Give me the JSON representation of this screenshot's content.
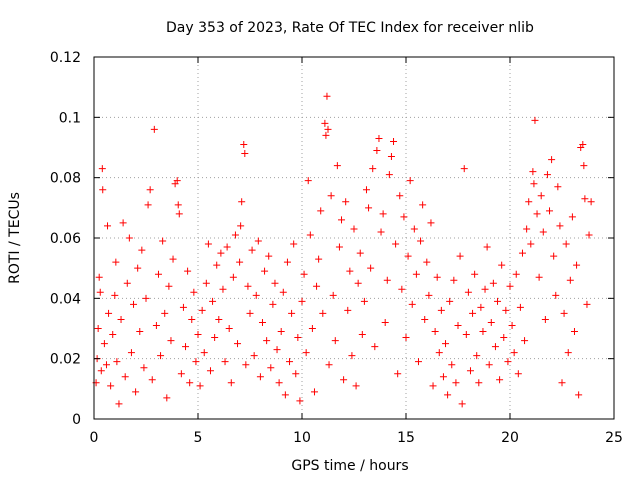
{
  "chart_data": {
    "type": "scatter",
    "title": "Day 353 of 2023, Rate Of TEC Index for receiver nlib",
    "xlabel": "GPS time / hours",
    "ylabel": "ROTI / TECUs",
    "xlim": [
      0,
      25
    ],
    "ylim": [
      0,
      0.12
    ],
    "x_ticks": [
      0,
      5,
      10,
      15,
      20,
      25
    ],
    "x_tick_labels": [
      "0",
      "5",
      "10",
      "15",
      "20",
      "25"
    ],
    "y_ticks": [
      0,
      0.02,
      0.04,
      0.06,
      0.08,
      0.1,
      0.12
    ],
    "y_tick_labels": [
      "0",
      "0.02",
      "0.04",
      "0.06",
      "0.08",
      "0.1",
      "0.12"
    ],
    "grid": true,
    "marker": "plus",
    "color": "#ff0000",
    "series": [
      {
        "points": [
          [
            0.1,
            0.012
          ],
          [
            0.15,
            0.02
          ],
          [
            0.2,
            0.03
          ],
          [
            0.25,
            0.047
          ],
          [
            0.3,
            0.042
          ],
          [
            0.35,
            0.016
          ],
          [
            0.4,
            0.083
          ],
          [
            0.42,
            0.076
          ],
          [
            0.5,
            0.025
          ],
          [
            0.6,
            0.018
          ],
          [
            0.65,
            0.064
          ],
          [
            0.7,
            0.035
          ],
          [
            0.8,
            0.011
          ],
          [
            0.9,
            0.028
          ],
          [
            1.0,
            0.041
          ],
          [
            1.05,
            0.052
          ],
          [
            1.1,
            0.019
          ],
          [
            1.2,
            0.005
          ],
          [
            1.3,
            0.033
          ],
          [
            1.4,
            0.065
          ],
          [
            1.5,
            0.014
          ],
          [
            1.6,
            0.045
          ],
          [
            1.7,
            0.06
          ],
          [
            1.8,
            0.022
          ],
          [
            1.9,
            0.038
          ],
          [
            2.0,
            0.009
          ],
          [
            2.1,
            0.05
          ],
          [
            2.2,
            0.029
          ],
          [
            2.3,
            0.056
          ],
          [
            2.4,
            0.017
          ],
          [
            2.5,
            0.04
          ],
          [
            2.6,
            0.071
          ],
          [
            2.7,
            0.076
          ],
          [
            2.8,
            0.013
          ],
          [
            2.9,
            0.096
          ],
          [
            3.0,
            0.031
          ],
          [
            3.1,
            0.048
          ],
          [
            3.2,
            0.021
          ],
          [
            3.3,
            0.059
          ],
          [
            3.4,
            0.035
          ],
          [
            3.5,
            0.007
          ],
          [
            3.6,
            0.044
          ],
          [
            3.7,
            0.026
          ],
          [
            3.8,
            0.053
          ],
          [
            3.9,
            0.078
          ],
          [
            4.0,
            0.079
          ],
          [
            4.05,
            0.071
          ],
          [
            4.1,
            0.068
          ],
          [
            4.2,
            0.015
          ],
          [
            4.3,
            0.037
          ],
          [
            4.4,
            0.024
          ],
          [
            4.5,
            0.049
          ],
          [
            4.6,
            0.012
          ],
          [
            4.7,
            0.033
          ],
          [
            4.8,
            0.042
          ],
          [
            4.9,
            0.019
          ],
          [
            5.0,
            0.028
          ],
          [
            5.1,
            0.011
          ],
          [
            5.2,
            0.036
          ],
          [
            5.3,
            0.022
          ],
          [
            5.4,
            0.045
          ],
          [
            5.5,
            0.058
          ],
          [
            5.6,
            0.016
          ],
          [
            5.7,
            0.039
          ],
          [
            5.8,
            0.027
          ],
          [
            5.9,
            0.051
          ],
          [
            6.0,
            0.033
          ],
          [
            6.1,
            0.055
          ],
          [
            6.2,
            0.043
          ],
          [
            6.3,
            0.019
          ],
          [
            6.4,
            0.057
          ],
          [
            6.5,
            0.03
          ],
          [
            6.6,
            0.012
          ],
          [
            6.7,
            0.047
          ],
          [
            6.8,
            0.061
          ],
          [
            6.9,
            0.025
          ],
          [
            7.0,
            0.052
          ],
          [
            7.05,
            0.064
          ],
          [
            7.1,
            0.072
          ],
          [
            7.2,
            0.091
          ],
          [
            7.25,
            0.088
          ],
          [
            7.3,
            0.018
          ],
          [
            7.4,
            0.044
          ],
          [
            7.5,
            0.035
          ],
          [
            7.6,
            0.056
          ],
          [
            7.7,
            0.021
          ],
          [
            7.8,
            0.041
          ],
          [
            7.9,
            0.059
          ],
          [
            8.0,
            0.014
          ],
          [
            8.1,
            0.032
          ],
          [
            8.2,
            0.049
          ],
          [
            8.3,
            0.026
          ],
          [
            8.4,
            0.054
          ],
          [
            8.5,
            0.017
          ],
          [
            8.6,
            0.038
          ],
          [
            8.7,
            0.045
          ],
          [
            8.8,
            0.023
          ],
          [
            8.9,
            0.012
          ],
          [
            9.0,
            0.029
          ],
          [
            9.1,
            0.042
          ],
          [
            9.2,
            0.008
          ],
          [
            9.3,
            0.052
          ],
          [
            9.4,
            0.019
          ],
          [
            9.5,
            0.035
          ],
          [
            9.6,
            0.058
          ],
          [
            9.7,
            0.015
          ],
          [
            9.8,
            0.027
          ],
          [
            9.9,
            0.006
          ],
          [
            10.0,
            0.039
          ],
          [
            10.1,
            0.048
          ],
          [
            10.2,
            0.022
          ],
          [
            10.3,
            0.079
          ],
          [
            10.4,
            0.061
          ],
          [
            10.5,
            0.03
          ],
          [
            10.6,
            0.009
          ],
          [
            10.7,
            0.044
          ],
          [
            10.8,
            0.053
          ],
          [
            10.9,
            0.069
          ],
          [
            11.0,
            0.035
          ],
          [
            11.1,
            0.098
          ],
          [
            11.15,
            0.094
          ],
          [
            11.2,
            0.107
          ],
          [
            11.25,
            0.096
          ],
          [
            11.3,
            0.018
          ],
          [
            11.4,
            0.074
          ],
          [
            11.5,
            0.041
          ],
          [
            11.6,
            0.026
          ],
          [
            11.7,
            0.084
          ],
          [
            11.8,
            0.057
          ],
          [
            11.9,
            0.066
          ],
          [
            12.0,
            0.013
          ],
          [
            12.1,
            0.072
          ],
          [
            12.2,
            0.036
          ],
          [
            12.3,
            0.049
          ],
          [
            12.4,
            0.021
          ],
          [
            12.5,
            0.063
          ],
          [
            12.6,
            0.011
          ],
          [
            12.7,
            0.045
          ],
          [
            12.8,
            0.055
          ],
          [
            12.9,
            0.028
          ],
          [
            13.0,
            0.039
          ],
          [
            13.1,
            0.076
          ],
          [
            13.2,
            0.07
          ],
          [
            13.3,
            0.05
          ],
          [
            13.4,
            0.083
          ],
          [
            13.5,
            0.024
          ],
          [
            13.6,
            0.089
          ],
          [
            13.7,
            0.093
          ],
          [
            13.8,
            0.062
          ],
          [
            13.9,
            0.068
          ],
          [
            14.0,
            0.032
          ],
          [
            14.1,
            0.046
          ],
          [
            14.2,
            0.081
          ],
          [
            14.3,
            0.087
          ],
          [
            14.4,
            0.092
          ],
          [
            14.5,
            0.058
          ],
          [
            14.6,
            0.015
          ],
          [
            14.7,
            0.074
          ],
          [
            14.8,
            0.043
          ],
          [
            14.9,
            0.067
          ],
          [
            15.0,
            0.027
          ],
          [
            15.1,
            0.054
          ],
          [
            15.2,
            0.079
          ],
          [
            15.3,
            0.038
          ],
          [
            15.4,
            0.063
          ],
          [
            15.5,
            0.048
          ],
          [
            15.6,
            0.019
          ],
          [
            15.7,
            0.059
          ],
          [
            15.8,
            0.071
          ],
          [
            15.9,
            0.033
          ],
          [
            16.0,
            0.052
          ],
          [
            16.1,
            0.041
          ],
          [
            16.2,
            0.065
          ],
          [
            16.3,
            0.011
          ],
          [
            16.4,
            0.029
          ],
          [
            16.5,
            0.047
          ],
          [
            16.6,
            0.022
          ],
          [
            16.7,
            0.036
          ],
          [
            16.8,
            0.014
          ],
          [
            16.9,
            0.025
          ],
          [
            17.0,
            0.008
          ],
          [
            17.1,
            0.039
          ],
          [
            17.2,
            0.018
          ],
          [
            17.3,
            0.046
          ],
          [
            17.4,
            0.012
          ],
          [
            17.5,
            0.031
          ],
          [
            17.6,
            0.054
          ],
          [
            17.7,
            0.005
          ],
          [
            17.8,
            0.083
          ],
          [
            17.9,
            0.028
          ],
          [
            18.0,
            0.042
          ],
          [
            18.1,
            0.016
          ],
          [
            18.2,
            0.035
          ],
          [
            18.3,
            0.048
          ],
          [
            18.4,
            0.021
          ],
          [
            18.5,
            0.012
          ],
          [
            18.6,
            0.037
          ],
          [
            18.7,
            0.029
          ],
          [
            18.8,
            0.043
          ],
          [
            18.9,
            0.057
          ],
          [
            19.0,
            0.018
          ],
          [
            19.1,
            0.032
          ],
          [
            19.2,
            0.045
          ],
          [
            19.3,
            0.024
          ],
          [
            19.4,
            0.039
          ],
          [
            19.5,
            0.013
          ],
          [
            19.6,
            0.051
          ],
          [
            19.7,
            0.027
          ],
          [
            19.8,
            0.036
          ],
          [
            19.9,
            0.019
          ],
          [
            20.0,
            0.044
          ],
          [
            20.1,
            0.031
          ],
          [
            20.2,
            0.022
          ],
          [
            20.3,
            0.048
          ],
          [
            20.4,
            0.015
          ],
          [
            20.5,
            0.037
          ],
          [
            20.6,
            0.055
          ],
          [
            20.7,
            0.026
          ],
          [
            20.8,
            0.063
          ],
          [
            20.9,
            0.072
          ],
          [
            21.0,
            0.058
          ],
          [
            21.1,
            0.082
          ],
          [
            21.15,
            0.078
          ],
          [
            21.2,
            0.099
          ],
          [
            21.3,
            0.068
          ],
          [
            21.4,
            0.047
          ],
          [
            21.5,
            0.074
          ],
          [
            21.6,
            0.062
          ],
          [
            21.7,
            0.033
          ],
          [
            21.8,
            0.081
          ],
          [
            21.9,
            0.069
          ],
          [
            22.0,
            0.086
          ],
          [
            22.1,
            0.054
          ],
          [
            22.2,
            0.041
          ],
          [
            22.3,
            0.077
          ],
          [
            22.4,
            0.064
          ],
          [
            22.5,
            0.012
          ],
          [
            22.6,
            0.035
          ],
          [
            22.7,
            0.058
          ],
          [
            22.8,
            0.022
          ],
          [
            22.9,
            0.046
          ],
          [
            23.0,
            0.067
          ],
          [
            23.1,
            0.029
          ],
          [
            23.2,
            0.051
          ],
          [
            23.3,
            0.008
          ],
          [
            23.4,
            0.09
          ],
          [
            23.5,
            0.091
          ],
          [
            23.55,
            0.084
          ],
          [
            23.6,
            0.073
          ],
          [
            23.7,
            0.038
          ],
          [
            23.8,
            0.061
          ],
          [
            23.9,
            0.072
          ]
        ]
      }
    ]
  }
}
